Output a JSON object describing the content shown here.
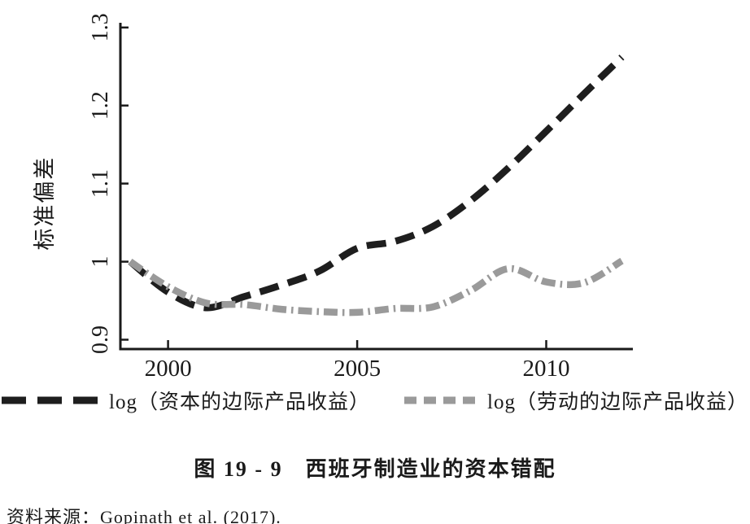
{
  "chart_data": {
    "type": "line",
    "title": "图 19 - 9　西班牙制造业的资本错配",
    "ylabel": "标准偏差",
    "x": [
      1999,
      2000,
      2001,
      2002,
      2003,
      2004,
      2005,
      2006,
      2007,
      2008,
      2009,
      2010,
      2011,
      2012
    ],
    "series": [
      {
        "name": "log（资本的边际产品收益）",
        "color": "#1e1e1e",
        "dash_style": "long-dash",
        "values": [
          1.0,
          0.961,
          0.941,
          0.955,
          0.97,
          0.988,
          1.017,
          1.026,
          1.045,
          1.078,
          1.12,
          1.167,
          1.215,
          1.262
        ]
      },
      {
        "name": "log（劳动的边际产品收益）",
        "color": "#9a9a9a",
        "dash_style": "dash-dot",
        "values": [
          1.0,
          0.968,
          0.947,
          0.945,
          0.939,
          0.936,
          0.935,
          0.94,
          0.942,
          0.963,
          0.991,
          0.974,
          0.973,
          1.001
        ]
      }
    ],
    "x_ticks": [
      {
        "value": 2000,
        "label": "2000"
      },
      {
        "value": 2005,
        "label": "2005"
      },
      {
        "value": 2010,
        "label": "2010"
      }
    ],
    "y_ticks": [
      {
        "value": 0.9,
        "label": "0.9"
      },
      {
        "value": 1.0,
        "label": "1"
      },
      {
        "value": 1.1,
        "label": "1.1"
      },
      {
        "value": 1.2,
        "label": "1.2"
      },
      {
        "value": 1.3,
        "label": "1.3"
      }
    ],
    "xlim": [
      1998.74,
      2012.29
    ],
    "ylim": [
      0.888,
      1.306
    ],
    "grid": "off",
    "legend_position": "bottom",
    "axis_color": "#1a1a1a"
  },
  "source_note": "资料来源：Gopinath et al. (2017)."
}
